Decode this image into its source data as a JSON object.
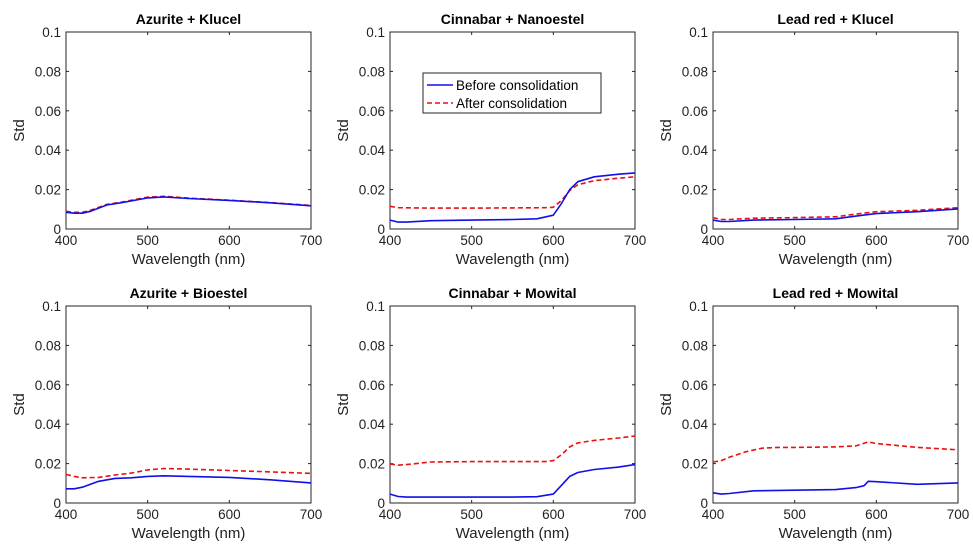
{
  "colors": {
    "before": "#1010e8",
    "after": "#e81010"
  },
  "chart_data": [
    {
      "type": "line",
      "title": "Azurite + Klucel",
      "xlabel": "Wavelength (nm)",
      "ylabel": "Std",
      "xlim": [
        400,
        700
      ],
      "ylim": [
        0,
        0.1
      ],
      "xticks": [
        "400",
        "500",
        "600",
        "700"
      ],
      "yticks": [
        "0",
        "0.02",
        "0.04",
        "0.06",
        "0.08",
        "0.1"
      ],
      "series": [
        {
          "name": "Before consolidation",
          "style": "solid",
          "x": [
            400,
            410,
            420,
            430,
            450,
            470,
            500,
            520,
            550,
            600,
            650,
            700
          ],
          "y": [
            0.0085,
            0.008,
            0.008,
            0.009,
            0.0122,
            0.0135,
            0.0158,
            0.0163,
            0.0155,
            0.0145,
            0.0133,
            0.0118
          ]
        },
        {
          "name": "After consolidation",
          "style": "dashed",
          "x": [
            400,
            410,
            420,
            430,
            450,
            470,
            500,
            520,
            550,
            600,
            650,
            700
          ],
          "y": [
            0.009,
            0.0085,
            0.0085,
            0.0095,
            0.0125,
            0.0138,
            0.0162,
            0.0166,
            0.0157,
            0.0146,
            0.0134,
            0.012
          ]
        }
      ]
    },
    {
      "type": "line",
      "title": "Cinnabar + Nanoestel",
      "xlabel": "Wavelength (nm)",
      "ylabel": "Std",
      "xlim": [
        400,
        700
      ],
      "ylim": [
        0,
        0.1
      ],
      "xticks": [
        "400",
        "500",
        "600",
        "700"
      ],
      "yticks": [
        "0",
        "0.02",
        "0.04",
        "0.06",
        "0.08",
        "0.1"
      ],
      "legend": {
        "position": "top-center",
        "entries": [
          "Before consolidation",
          "After consolidation"
        ]
      },
      "series": [
        {
          "name": "Before consolidation",
          "style": "solid",
          "x": [
            400,
            410,
            420,
            450,
            500,
            550,
            580,
            600,
            610,
            620,
            630,
            650,
            680,
            700
          ],
          "y": [
            0.0045,
            0.0035,
            0.0035,
            0.0042,
            0.0045,
            0.0048,
            0.0052,
            0.007,
            0.013,
            0.02,
            0.024,
            0.0265,
            0.0278,
            0.0285
          ]
        },
        {
          "name": "After consolidation",
          "style": "dashed",
          "x": [
            400,
            410,
            450,
            500,
            550,
            590,
            600,
            610,
            620,
            630,
            650,
            680,
            700
          ],
          "y": [
            0.0115,
            0.0108,
            0.0106,
            0.0106,
            0.0107,
            0.0108,
            0.011,
            0.0145,
            0.0195,
            0.0225,
            0.0245,
            0.0258,
            0.0265
          ]
        }
      ]
    },
    {
      "type": "line",
      "title": "Lead red + Klucel",
      "xlabel": "Wavelength (nm)",
      "ylabel": "Std",
      "xlim": [
        400,
        700
      ],
      "ylim": [
        0,
        0.1
      ],
      "xticks": [
        "400",
        "500",
        "600",
        "700"
      ],
      "yticks": [
        "0",
        "0.02",
        "0.04",
        "0.06",
        "0.08",
        "0.1"
      ],
      "series": [
        {
          "name": "Before consolidation",
          "style": "solid",
          "x": [
            400,
            410,
            420,
            450,
            500,
            550,
            580,
            600,
            650,
            700
          ],
          "y": [
            0.0045,
            0.0038,
            0.0038,
            0.0045,
            0.0048,
            0.0052,
            0.0068,
            0.0078,
            0.0088,
            0.0102
          ]
        },
        {
          "name": "After consolidation",
          "style": "dashed",
          "x": [
            400,
            410,
            420,
            450,
            500,
            550,
            580,
            600,
            650,
            700
          ],
          "y": [
            0.0058,
            0.0048,
            0.0048,
            0.0055,
            0.0058,
            0.0062,
            0.0078,
            0.0088,
            0.0095,
            0.0108
          ]
        }
      ]
    },
    {
      "type": "line",
      "title": "Azurite + Bioestel",
      "xlabel": "Wavelength (nm)",
      "ylabel": "Std",
      "xlim": [
        400,
        700
      ],
      "ylim": [
        0,
        0.1
      ],
      "xticks": [
        "400",
        "500",
        "600",
        "700"
      ],
      "yticks": [
        "0",
        "0.02",
        "0.04",
        "0.06",
        "0.08",
        "0.1"
      ],
      "series": [
        {
          "name": "Before consolidation",
          "style": "solid",
          "x": [
            400,
            410,
            420,
            440,
            460,
            480,
            500,
            520,
            550,
            600,
            650,
            700
          ],
          "y": [
            0.0072,
            0.0072,
            0.008,
            0.011,
            0.0125,
            0.0128,
            0.0135,
            0.0138,
            0.0135,
            0.013,
            0.0118,
            0.0102
          ]
        },
        {
          "name": "After consolidation",
          "style": "dashed",
          "x": [
            400,
            410,
            420,
            440,
            460,
            480,
            500,
            520,
            550,
            600,
            650,
            700
          ],
          "y": [
            0.0145,
            0.0135,
            0.0128,
            0.013,
            0.0142,
            0.0152,
            0.0168,
            0.0175,
            0.0172,
            0.0165,
            0.0158,
            0.015
          ]
        }
      ]
    },
    {
      "type": "line",
      "title": "Cinnabar + Mowital",
      "xlabel": "Wavelength (nm)",
      "ylabel": "Std",
      "xlim": [
        400,
        700
      ],
      "ylim": [
        0,
        0.1
      ],
      "xticks": [
        "400",
        "500",
        "600",
        "700"
      ],
      "yticks": [
        "0",
        "0.02",
        "0.04",
        "0.06",
        "0.08",
        "0.1"
      ],
      "series": [
        {
          "name": "Before consolidation",
          "style": "solid",
          "x": [
            400,
            410,
            420,
            450,
            500,
            550,
            580,
            600,
            610,
            620,
            630,
            650,
            680,
            700
          ],
          "y": [
            0.0045,
            0.0033,
            0.003,
            0.003,
            0.003,
            0.003,
            0.0032,
            0.0045,
            0.009,
            0.0135,
            0.0155,
            0.017,
            0.0182,
            0.0195
          ]
        },
        {
          "name": "After consolidation",
          "style": "dashed",
          "x": [
            400,
            410,
            420,
            450,
            500,
            550,
            590,
            600,
            610,
            620,
            630,
            650,
            680,
            700
          ],
          "y": [
            0.0198,
            0.0192,
            0.0195,
            0.0208,
            0.021,
            0.021,
            0.021,
            0.0215,
            0.0245,
            0.0285,
            0.0305,
            0.0318,
            0.033,
            0.034
          ]
        }
      ]
    },
    {
      "type": "line",
      "title": "Lead red + Mowital",
      "xlabel": "Wavelength (nm)",
      "ylabel": "Std",
      "xlim": [
        400,
        700
      ],
      "ylim": [
        0,
        0.1
      ],
      "xticks": [
        "400",
        "500",
        "600",
        "700"
      ],
      "yticks": [
        "0",
        "0.02",
        "0.04",
        "0.06",
        "0.08",
        "0.1"
      ],
      "series": [
        {
          "name": "Before consolidation",
          "style": "solid",
          "x": [
            400,
            410,
            420,
            450,
            500,
            550,
            575,
            585,
            590,
            600,
            650,
            700
          ],
          "y": [
            0.0052,
            0.0045,
            0.0048,
            0.0062,
            0.0065,
            0.0068,
            0.0078,
            0.0088,
            0.011,
            0.0108,
            0.0095,
            0.0102
          ]
        },
        {
          "name": "After consolidation",
          "style": "dashed",
          "x": [
            400,
            410,
            420,
            440,
            460,
            480,
            500,
            550,
            575,
            590,
            600,
            650,
            700
          ],
          "y": [
            0.0208,
            0.0215,
            0.0232,
            0.026,
            0.0278,
            0.0282,
            0.0282,
            0.0285,
            0.029,
            0.031,
            0.0302,
            0.0282,
            0.027
          ]
        }
      ]
    }
  ]
}
